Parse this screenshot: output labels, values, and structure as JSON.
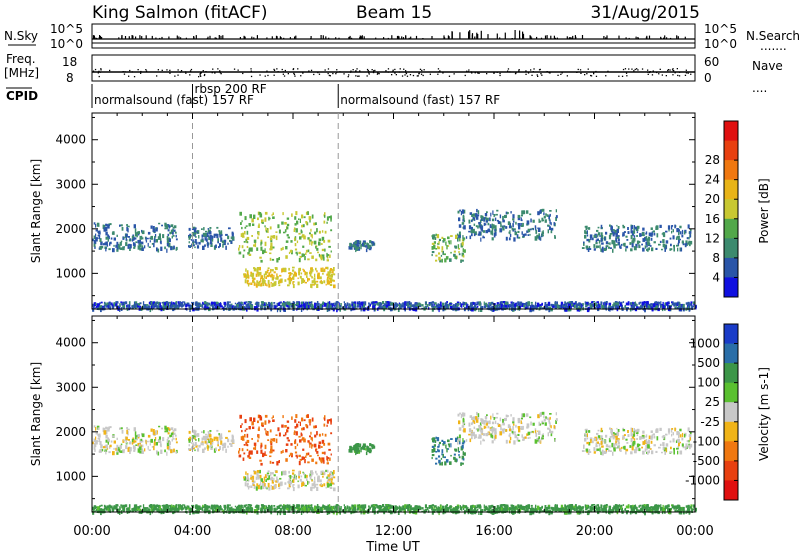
{
  "header": {
    "station": "King Salmon (fitACF)",
    "beam": "Beam 15",
    "date": "31/Aug/2015"
  },
  "panel_labels": {
    "nsky": "N.Sky",
    "nsearch": "N.Search",
    "freq_top": "Freq.",
    "freq_unit": "[MHz]",
    "nave": "Nave",
    "cpid": "CPID",
    "nsky_ticks": [
      "10^5",
      "10^0"
    ],
    "nsearch_ticks": [
      "10^5",
      "10^0"
    ],
    "freq_ticks": [
      "18",
      "8"
    ],
    "nave_ticks": [
      "60",
      "0"
    ]
  },
  "cpid_segments": [
    {
      "label": "normalsound (fast) 157 RF",
      "start_hour": 0.0
    },
    {
      "label": "rbsp 200 RF",
      "start_hour": 4.0
    },
    {
      "label": "normalsound (fast) 157 RF",
      "start_hour": 9.8
    }
  ],
  "chart_data": [
    {
      "type": "heatmap",
      "name": "power-panel",
      "ylabel": "Slant Range [km]",
      "xlabel": "",
      "xlim": [
        0,
        24
      ],
      "ylim": [
        200,
        4600
      ],
      "yticks": [
        1000,
        2000,
        3000,
        4000
      ],
      "xticks": [
        0,
        4,
        8,
        12,
        16,
        20,
        24
      ],
      "colorbar": {
        "label": "Power [dB]",
        "ticks": [
          "4",
          "8",
          "12",
          "16",
          "20",
          "24",
          "28"
        ],
        "colors": [
          "#1010e0",
          "#2a55a8",
          "#3c8a6e",
          "#52a84a",
          "#c8c832",
          "#e8b418",
          "#f07810",
          "#e84010",
          "#e01010"
        ]
      },
      "dashed_lines_hours": [
        4.0,
        9.8
      ],
      "echo_regions": [
        {
          "t": [
            0.0,
            3.4
          ],
          "range": [
            1550,
            2150
          ],
          "value": 8
        },
        {
          "t": [
            3.8,
            5.6
          ],
          "range": [
            1600,
            2050
          ],
          "value": 8
        },
        {
          "t": [
            5.8,
            9.5
          ],
          "range": [
            1300,
            2400
          ],
          "value": 16
        },
        {
          "t": [
            6.0,
            9.6
          ],
          "range": [
            750,
            1150
          ],
          "value": 20
        },
        {
          "t": [
            10.2,
            11.2
          ],
          "range": [
            1550,
            1750
          ],
          "value": 8
        },
        {
          "t": [
            13.5,
            14.8
          ],
          "range": [
            1300,
            1900
          ],
          "value": 14
        },
        {
          "t": [
            14.5,
            18.5
          ],
          "range": [
            1800,
            2450
          ],
          "value": 8
        },
        {
          "t": [
            19.5,
            23.8
          ],
          "range": [
            1550,
            2100
          ],
          "value": 8
        },
        {
          "t": [
            0.0,
            24.0
          ],
          "range": [
            220,
            380
          ],
          "value": 6
        }
      ]
    },
    {
      "type": "heatmap",
      "name": "velocity-panel",
      "ylabel": "Slant Range [km]",
      "xlabel": "Time UT",
      "xlim": [
        0,
        24
      ],
      "ylim": [
        200,
        4600
      ],
      "yticks": [
        1000,
        2000,
        3000,
        4000
      ],
      "xticks": [
        0,
        4,
        8,
        12,
        16,
        20,
        24
      ],
      "xticklabels": [
        "00:00",
        "04:00",
        "08:00",
        "12:00",
        "16:00",
        "20:00",
        "00:00"
      ],
      "colorbar": {
        "label": "Velocity [m s-1]",
        "ticks": [
          "1000",
          "500",
          "100",
          "25",
          "-25",
          "-100",
          "-500",
          "-1000"
        ],
        "colors": [
          "#1a3cc8",
          "#2a6ea8",
          "#3c9648",
          "#5ac030",
          "#c8c8c8",
          "#f0b418",
          "#f07810",
          "#e84010",
          "#e01010"
        ]
      },
      "dashed_lines_hours": [
        4.0,
        9.8
      ],
      "echo_regions": [
        {
          "t": [
            0.0,
            3.4
          ],
          "range": [
            1550,
            2150
          ],
          "value": 0
        },
        {
          "t": [
            3.8,
            5.6
          ],
          "range": [
            1600,
            2050
          ],
          "value": 0
        },
        {
          "t": [
            5.8,
            9.5
          ],
          "range": [
            1300,
            2400
          ],
          "value": -300
        },
        {
          "t": [
            6.0,
            9.6
          ],
          "range": [
            750,
            1150
          ],
          "value": 0
        },
        {
          "t": [
            10.2,
            11.2
          ],
          "range": [
            1550,
            1750
          ],
          "value": 100
        },
        {
          "t": [
            13.5,
            14.8
          ],
          "range": [
            1300,
            1900
          ],
          "value": 300
        },
        {
          "t": [
            14.5,
            18.5
          ],
          "range": [
            1800,
            2450
          ],
          "value": 0
        },
        {
          "t": [
            19.5,
            23.8
          ],
          "range": [
            1550,
            2100
          ],
          "value": 0
        },
        {
          "t": [
            0.0,
            24.0
          ],
          "range": [
            220,
            380
          ],
          "value": 100
        }
      ]
    }
  ]
}
